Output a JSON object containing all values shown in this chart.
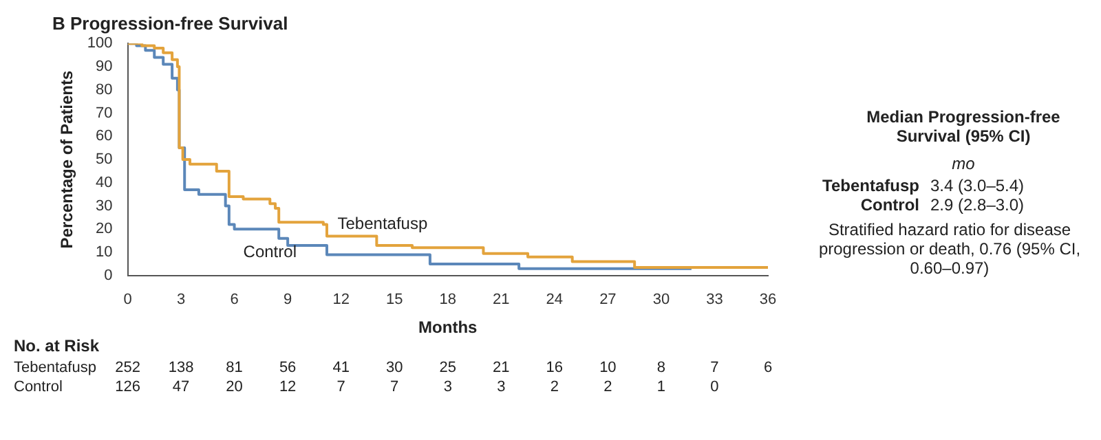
{
  "chart_data": {
    "type": "step",
    "title": "B Progression-free Survival",
    "xlabel": "Months",
    "ylabel": "Percentage of Patients",
    "xlim": [
      0,
      36
    ],
    "xticks": [
      0,
      3,
      6,
      9,
      12,
      15,
      18,
      21,
      24,
      27,
      30,
      33,
      36
    ],
    "ylim": [
      0,
      100
    ],
    "yticks": [
      0,
      10,
      20,
      30,
      40,
      50,
      60,
      70,
      80,
      90,
      100
    ],
    "grid": false,
    "legend": false,
    "marker": "none",
    "line_style": "solid",
    "series": [
      {
        "name": "Tebentafusp",
        "color": "#e3a33c",
        "x": [
          0,
          0.8,
          1.5,
          2,
          2.5,
          2.8,
          2.9,
          3.1,
          3.5,
          5,
          5.7,
          6.5,
          8,
          8.3,
          8.5,
          9.5,
          11,
          11.2,
          14,
          16,
          18,
          20,
          22.5,
          25,
          28.5,
          36
        ],
        "values": [
          100,
          99,
          98,
          96,
          93,
          90,
          55,
          50,
          48,
          45,
          34,
          33,
          31,
          29,
          23,
          23,
          22,
          17,
          13,
          12,
          12,
          9.5,
          8,
          6,
          3.5,
          3.5
        ]
      },
      {
        "name": "Control",
        "color": "#5b87b9",
        "x": [
          0,
          0.5,
          1,
          1.5,
          2,
          2.5,
          2.8,
          2.9,
          3.2,
          4,
          5.5,
          5.7,
          6,
          8.5,
          9,
          11.2,
          17,
          22,
          31.7
        ],
        "values": [
          100,
          99,
          97,
          94,
          91,
          85,
          80,
          55,
          37,
          35,
          30,
          22,
          20,
          16,
          13,
          9,
          5,
          3,
          3
        ]
      }
    ],
    "annotations": [
      "Median Progression-free Survival (95% CI)",
      "mo",
      "Tebentafusp",
      "3.4 (3.0–5.4)",
      "Control",
      "2.9 (2.8–3.0)",
      "Stratified hazard ratio for disease progression or death, 0.76 (95% CI, 0.60–0.97)",
      "No. at Risk",
      "Tebentafusp 252 138 81 56 41 30 25 21 16 10 8 7 6",
      "Control 126 47 20 12 7 7 3 3 2 2 1 0"
    ]
  }
}
